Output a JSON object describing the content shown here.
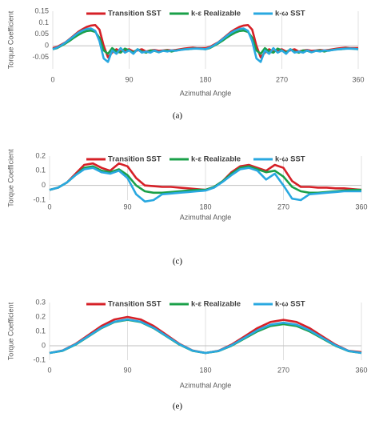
{
  "chart_data": [
    {
      "type": "line",
      "caption": "(a)",
      "xlabel": "Azimuthal Angle",
      "ylabel": "Torque Coefficient",
      "xlim": [
        0,
        360
      ],
      "xticks": [
        0,
        90,
        180,
        270,
        360
      ],
      "ylim": [
        -0.1,
        0.15
      ],
      "yticks": [
        -0.05,
        0,
        0.05,
        0.1,
        0.15
      ],
      "xgrid": true,
      "x": [
        0,
        5,
        10,
        15,
        20,
        25,
        30,
        35,
        40,
        45,
        50,
        55,
        60,
        65,
        70,
        75,
        80,
        85,
        90,
        95,
        100,
        105,
        110,
        115,
        120,
        125,
        130,
        135,
        140,
        145,
        150,
        155,
        160,
        165,
        170,
        175,
        180,
        185,
        190,
        195,
        200,
        205,
        210,
        215,
        220,
        225,
        230,
        235,
        240,
        245,
        250,
        255,
        260,
        265,
        270,
        275,
        280,
        285,
        290,
        295,
        300,
        305,
        310,
        315,
        320,
        325,
        330,
        335,
        340,
        345,
        350,
        355,
        360
      ],
      "series": [
        {
          "name": "Transition SST",
          "color": "#d62027",
          "values": [
            -0.01,
            -0.005,
            0.005,
            0.015,
            0.03,
            0.045,
            0.06,
            0.072,
            0.082,
            0.088,
            0.09,
            0.07,
            0.0,
            -0.05,
            -0.03,
            -0.015,
            -0.025,
            -0.02,
            -0.015,
            -0.025,
            -0.02,
            -0.015,
            -0.025,
            -0.02,
            -0.018,
            -0.022,
            -0.02,
            -0.018,
            -0.02,
            -0.018,
            -0.015,
            -0.012,
            -0.01,
            -0.008,
            -0.01,
            -0.01,
            -0.01,
            -0.005,
            0.005,
            0.015,
            0.03,
            0.045,
            0.06,
            0.072,
            0.082,
            0.088,
            0.09,
            0.07,
            0.0,
            -0.05,
            -0.03,
            -0.015,
            -0.025,
            -0.02,
            -0.015,
            -0.025,
            -0.02,
            -0.015,
            -0.025,
            -0.02,
            -0.018,
            -0.022,
            -0.02,
            -0.018,
            -0.02,
            -0.018,
            -0.015,
            -0.012,
            -0.01,
            -0.008,
            -0.01,
            -0.01,
            -0.01
          ]
        },
        {
          "name": "k-ε Realizable",
          "color": "#1aa049",
          "values": [
            -0.015,
            -0.01,
            0,
            0.01,
            0.022,
            0.035,
            0.047,
            0.057,
            0.064,
            0.066,
            0.06,
            0.035,
            -0.02,
            -0.035,
            -0.01,
            -0.025,
            -0.03,
            -0.012,
            -0.02,
            -0.03,
            -0.015,
            -0.025,
            -0.03,
            -0.02,
            -0.022,
            -0.028,
            -0.022,
            -0.02,
            -0.025,
            -0.02,
            -0.018,
            -0.015,
            -0.015,
            -0.012,
            -0.012,
            -0.013,
            -0.015,
            -0.01,
            0,
            0.01,
            0.022,
            0.035,
            0.047,
            0.057,
            0.064,
            0.066,
            0.06,
            0.035,
            -0.02,
            -0.035,
            -0.01,
            -0.025,
            -0.03,
            -0.012,
            -0.02,
            -0.03,
            -0.015,
            -0.025,
            -0.03,
            -0.02,
            -0.022,
            -0.028,
            -0.022,
            -0.02,
            -0.025,
            -0.02,
            -0.018,
            -0.015,
            -0.015,
            -0.012,
            -0.012,
            -0.013,
            -0.015
          ]
        },
        {
          "name": "k-ω SST",
          "color": "#29a8e0",
          "values": [
            -0.015,
            -0.008,
            0.002,
            0.014,
            0.028,
            0.042,
            0.056,
            0.066,
            0.073,
            0.075,
            0.065,
            0.02,
            -0.055,
            -0.07,
            -0.02,
            -0.035,
            -0.01,
            -0.03,
            -0.02,
            -0.035,
            -0.015,
            -0.03,
            -0.025,
            -0.03,
            -0.02,
            -0.028,
            -0.022,
            -0.025,
            -0.02,
            -0.022,
            -0.018,
            -0.016,
            -0.014,
            -0.013,
            -0.012,
            -0.013,
            -0.015,
            -0.008,
            0.002,
            0.014,
            0.028,
            0.042,
            0.056,
            0.066,
            0.073,
            0.075,
            0.065,
            0.02,
            -0.055,
            -0.07,
            -0.02,
            -0.035,
            -0.01,
            -0.03,
            -0.02,
            -0.035,
            -0.015,
            -0.03,
            -0.025,
            -0.03,
            -0.02,
            -0.028,
            -0.022,
            -0.025,
            -0.02,
            -0.022,
            -0.018,
            -0.016,
            -0.014,
            -0.013,
            -0.012,
            -0.013,
            -0.015
          ]
        }
      ]
    },
    {
      "type": "line",
      "caption": "(c)",
      "xlabel": "Azimuthal Angle",
      "ylabel": "Torque Coefficient",
      "xlim": [
        0,
        360
      ],
      "xticks": [
        0,
        90,
        180,
        270,
        360
      ],
      "ylim": [
        -0.1,
        0.2
      ],
      "yticks": [
        -0.1,
        0,
        0.1,
        0.2
      ],
      "xgrid": true,
      "x": [
        0,
        10,
        20,
        30,
        40,
        50,
        60,
        70,
        80,
        90,
        100,
        110,
        120,
        130,
        140,
        150,
        160,
        170,
        180,
        190,
        200,
        210,
        220,
        230,
        240,
        250,
        260,
        270,
        280,
        290,
        300,
        310,
        320,
        330,
        340,
        350,
        360
      ],
      "series": [
        {
          "name": "Transition SST",
          "color": "#d62027",
          "values": [
            -0.03,
            -0.015,
            0.02,
            0.08,
            0.14,
            0.15,
            0.12,
            0.1,
            0.15,
            0.13,
            0.05,
            0.0,
            -0.005,
            -0.01,
            -0.01,
            -0.015,
            -0.02,
            -0.025,
            -0.03,
            -0.01,
            0.03,
            0.09,
            0.13,
            0.14,
            0.12,
            0.1,
            0.14,
            0.12,
            0.03,
            -0.01,
            -0.01,
            -0.015,
            -0.015,
            -0.02,
            -0.02,
            -0.025,
            -0.03
          ]
        },
        {
          "name": "k-ε Realizable",
          "color": "#1aa049",
          "values": [
            -0.03,
            -0.015,
            0.02,
            0.07,
            0.12,
            0.13,
            0.1,
            0.09,
            0.11,
            0.07,
            0.0,
            -0.04,
            -0.05,
            -0.05,
            -0.045,
            -0.04,
            -0.035,
            -0.03,
            -0.03,
            -0.01,
            0.03,
            0.08,
            0.12,
            0.13,
            0.11,
            0.09,
            0.1,
            0.06,
            -0.01,
            -0.04,
            -0.05,
            -0.05,
            -0.045,
            -0.04,
            -0.035,
            -0.03,
            -0.03
          ]
        },
        {
          "name": "k-ω SST",
          "color": "#29a8e0",
          "values": [
            -0.03,
            -0.015,
            0.02,
            0.07,
            0.11,
            0.12,
            0.09,
            0.08,
            0.1,
            0.05,
            -0.06,
            -0.11,
            -0.1,
            -0.06,
            -0.055,
            -0.05,
            -0.045,
            -0.04,
            -0.035,
            -0.015,
            0.025,
            0.07,
            0.11,
            0.12,
            0.1,
            0.04,
            0.08,
            0.0,
            -0.09,
            -0.1,
            -0.06,
            -0.055,
            -0.05,
            -0.045,
            -0.04,
            -0.04,
            -0.04
          ]
        }
      ]
    },
    {
      "type": "line",
      "caption": "(e)",
      "xlabel": "Azimuthal Angle",
      "ylabel": "Torque Coefficient",
      "xlim": [
        0,
        360
      ],
      "xticks": [
        0,
        90,
        180,
        270,
        360
      ],
      "ylim": [
        -0.1,
        0.3
      ],
      "yticks": [
        -0.1,
        0,
        0.1,
        0.2,
        0.3
      ],
      "xgrid": true,
      "x": [
        0,
        15,
        30,
        45,
        60,
        75,
        90,
        105,
        120,
        135,
        150,
        165,
        180,
        195,
        210,
        225,
        240,
        255,
        270,
        285,
        300,
        315,
        330,
        345,
        360
      ],
      "series": [
        {
          "name": "Transition SST",
          "color": "#d62027",
          "values": [
            -0.05,
            -0.033,
            0.013,
            0.075,
            0.138,
            0.183,
            0.2,
            0.183,
            0.138,
            0.075,
            0.013,
            -0.033,
            -0.05,
            -0.035,
            0.008,
            0.065,
            0.123,
            0.165,
            0.18,
            0.165,
            0.123,
            0.065,
            0.008,
            -0.035,
            -0.045
          ]
        },
        {
          "name": "k-ε Realizable",
          "color": "#1aa049",
          "values": [
            -0.05,
            -0.035,
            0.008,
            0.065,
            0.123,
            0.165,
            0.18,
            0.165,
            0.123,
            0.065,
            0.008,
            -0.035,
            -0.05,
            -0.037,
            0.0,
            0.05,
            0.1,
            0.137,
            0.15,
            0.137,
            0.1,
            0.05,
            0.0,
            -0.037,
            -0.05
          ]
        },
        {
          "name": "k-ω SST",
          "color": "#29a8e0",
          "values": [
            -0.05,
            -0.034,
            0.01,
            0.067,
            0.125,
            0.167,
            0.183,
            0.167,
            0.125,
            0.067,
            0.01,
            -0.034,
            -0.05,
            -0.036,
            0.003,
            0.055,
            0.108,
            0.146,
            0.16,
            0.146,
            0.108,
            0.055,
            0.003,
            -0.036,
            -0.05
          ]
        }
      ]
    }
  ]
}
